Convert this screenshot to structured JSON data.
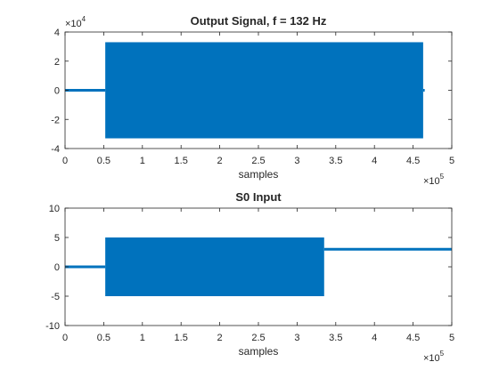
{
  "figure": {
    "background": "#ffffff"
  },
  "style": {
    "series_color": "#0072bd",
    "axis_color": "#262626"
  },
  "chart_data": [
    {
      "type": "line",
      "title": "Output Signal, f = 132 Hz",
      "xlabel": "samples",
      "ylabel": "",
      "xlim": [
        0,
        500000
      ],
      "ylim": [
        -40000,
        40000
      ],
      "x_ticks": [
        0,
        50000,
        100000,
        150000,
        200000,
        250000,
        300000,
        350000,
        400000,
        450000,
        500000
      ],
      "x_tick_labels": [
        "0",
        "0.5",
        "1",
        "1.5",
        "2",
        "2.5",
        "3",
        "3.5",
        "4",
        "4.5",
        "5"
      ],
      "x_multiplier_base": "×10",
      "x_multiplier_exp": "5",
      "y_ticks": [
        -40000,
        -20000,
        0,
        20000,
        40000
      ],
      "y_tick_labels": [
        "-4",
        "-2",
        "0",
        "2",
        "4"
      ],
      "y_multiplier_base": "×10",
      "y_multiplier_exp": "4",
      "grid": false,
      "series": [
        {
          "segments": [
            {
              "kind": "line",
              "x": [
                0,
                52000
              ],
              "y": [
                0,
                0
              ]
            },
            {
              "kind": "band",
              "x": [
                52000,
                463000
              ],
              "ymin": -33000,
              "ymax": 33000
            },
            {
              "kind": "line",
              "x": [
                463000,
                465000
              ],
              "y": [
                0,
                0
              ]
            }
          ]
        }
      ]
    },
    {
      "type": "line",
      "title": "S0 Input",
      "xlabel": "samples",
      "ylabel": "",
      "xlim": [
        0,
        500000
      ],
      "ylim": [
        -10,
        10
      ],
      "x_ticks": [
        0,
        50000,
        100000,
        150000,
        200000,
        250000,
        300000,
        350000,
        400000,
        450000,
        500000
      ],
      "x_tick_labels": [
        "0",
        "0.5",
        "1",
        "1.5",
        "2",
        "2.5",
        "3",
        "3.5",
        "4",
        "4.5",
        "5"
      ],
      "x_multiplier_base": "×10",
      "x_multiplier_exp": "5",
      "y_ticks": [
        -10,
        -5,
        0,
        5,
        10
      ],
      "y_tick_labels": [
        "-10",
        "-5",
        "0",
        "5",
        "10"
      ],
      "grid": false,
      "series": [
        {
          "segments": [
            {
              "kind": "line",
              "x": [
                0,
                52000
              ],
              "y": [
                0,
                0
              ]
            },
            {
              "kind": "band",
              "x": [
                52000,
                335000
              ],
              "ymin": -5,
              "ymax": 5
            },
            {
              "kind": "line",
              "x": [
                335000,
                500000
              ],
              "y": [
                3,
                3
              ]
            }
          ]
        }
      ]
    }
  ]
}
